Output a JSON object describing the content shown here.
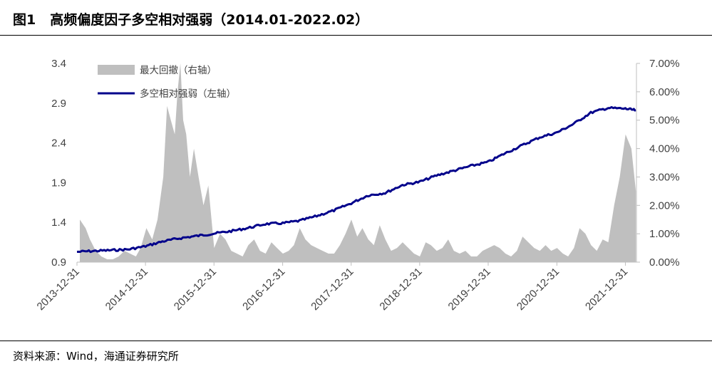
{
  "header": {
    "figure_no": "图1",
    "title": "高频偏度因子多空相对强弱（2014.01-2022.02）"
  },
  "footer": {
    "source": "资料来源：Wind，海通证券研究所"
  },
  "colors": {
    "drawdown": "#bfbfbf",
    "strength": "#00008b",
    "axis": "#bfbfbf"
  },
  "chart_data": {
    "type": "line",
    "title": "",
    "xlabel": "",
    "ylabel": "",
    "x_range": [
      "2013-12-31",
      "2022-02-28"
    ],
    "x_ticks": [
      "2013-12-31",
      "2014-12-31",
      "2015-12-31",
      "2016-12-31",
      "2017-12-31",
      "2018-12-31",
      "2019-12-31",
      "2020-12-31",
      "2021-12-31"
    ],
    "left_axis": {
      "ylim": [
        0.9,
        3.4
      ],
      "ticks": [
        "0.9",
        "1.4",
        "1.9",
        "2.4",
        "2.9",
        "3.4"
      ]
    },
    "right_axis": {
      "ylim": [
        0,
        0.07
      ],
      "ticks": [
        "0.00%",
        "1.00%",
        "2.00%",
        "3.00%",
        "4.00%",
        "5.00%",
        "6.00%",
        "7.00%"
      ]
    },
    "grid": false,
    "legend_position": "top-left",
    "series": [
      {
        "name": "最大回撤（右轴）",
        "type": "area",
        "axis": "right",
        "x": [
          "2014-01-15",
          "2014-02-15",
          "2014-03-10",
          "2014-04-10",
          "2014-05-10",
          "2014-06-10",
          "2014-07-10",
          "2014-08-10",
          "2014-09-10",
          "2014-10-10",
          "2014-11-10",
          "2014-12-05",
          "2015-01-05",
          "2015-02-05",
          "2015-03-05",
          "2015-04-05",
          "2015-04-25",
          "2015-05-15",
          "2015-06-05",
          "2015-06-20",
          "2015-07-05",
          "2015-07-20",
          "2015-08-05",
          "2015-08-25",
          "2015-09-15",
          "2015-10-10",
          "2015-11-05",
          "2015-12-01",
          "2016-01-01",
          "2016-02-01",
          "2016-03-01",
          "2016-04-01",
          "2016-05-01",
          "2016-06-01",
          "2016-07-01",
          "2016-08-01",
          "2016-09-01",
          "2016-10-01",
          "2016-11-01",
          "2016-12-01",
          "2017-01-01",
          "2017-02-01",
          "2017-03-01",
          "2017-04-01",
          "2017-05-01",
          "2017-06-01",
          "2017-07-01",
          "2017-08-01",
          "2017-09-01",
          "2017-10-01",
          "2017-11-01",
          "2017-12-01",
          "2018-01-01",
          "2018-02-01",
          "2018-03-01",
          "2018-04-01",
          "2018-05-01",
          "2018-06-01",
          "2018-07-01",
          "2018-08-01",
          "2018-09-01",
          "2018-10-01",
          "2018-11-01",
          "2018-12-01",
          "2019-01-01",
          "2019-02-01",
          "2019-03-01",
          "2019-04-01",
          "2019-05-01",
          "2019-06-01",
          "2019-07-01",
          "2019-08-01",
          "2019-09-01",
          "2019-10-01",
          "2019-11-01",
          "2019-12-01",
          "2020-01-01",
          "2020-02-01",
          "2020-03-01",
          "2020-04-01",
          "2020-05-01",
          "2020-06-01",
          "2020-07-01",
          "2020-08-01",
          "2020-09-01",
          "2020-10-01",
          "2020-11-01",
          "2020-12-01",
          "2021-01-01",
          "2021-02-01",
          "2021-03-01",
          "2021-04-01",
          "2021-05-01",
          "2021-06-01",
          "2021-07-01",
          "2021-08-01",
          "2021-09-01",
          "2021-10-01",
          "2021-11-01",
          "2021-12-01",
          "2022-01-01",
          "2022-02-01",
          "2022-02-25"
        ],
        "values": [
          0.015,
          0.012,
          0.008,
          0.004,
          0.002,
          0.001,
          0.001,
          0.002,
          0.004,
          0.003,
          0.002,
          0.005,
          0.012,
          0.008,
          0.015,
          0.03,
          0.055,
          0.05,
          0.045,
          0.06,
          0.07,
          0.05,
          0.045,
          0.03,
          0.04,
          0.03,
          0.02,
          0.027,
          0.005,
          0.01,
          0.008,
          0.004,
          0.003,
          0.002,
          0.006,
          0.008,
          0.004,
          0.003,
          0.007,
          0.005,
          0.003,
          0.004,
          0.006,
          0.012,
          0.008,
          0.006,
          0.005,
          0.004,
          0.003,
          0.003,
          0.006,
          0.01,
          0.015,
          0.009,
          0.012,
          0.008,
          0.006,
          0.013,
          0.008,
          0.004,
          0.005,
          0.007,
          0.005,
          0.003,
          0.002,
          0.007,
          0.006,
          0.004,
          0.005,
          0.008,
          0.004,
          0.003,
          0.004,
          0.002,
          0.002,
          0.004,
          0.005,
          0.006,
          0.005,
          0.003,
          0.002,
          0.004,
          0.009,
          0.007,
          0.005,
          0.004,
          0.006,
          0.004,
          0.005,
          0.003,
          0.002,
          0.005,
          0.012,
          0.01,
          0.006,
          0.004,
          0.008,
          0.007,
          0.02,
          0.03,
          0.045,
          0.04,
          0.025
        ]
      },
      {
        "name": "多空相对强弱（左轴）",
        "type": "line",
        "axis": "left",
        "x": [
          "2013-12-31",
          "2014-03-31",
          "2014-06-30",
          "2014-09-30",
          "2014-12-31",
          "2015-03-31",
          "2015-06-30",
          "2015-09-30",
          "2015-12-31",
          "2016-03-31",
          "2016-06-30",
          "2016-09-30",
          "2016-12-31",
          "2017-03-31",
          "2017-06-30",
          "2017-09-30",
          "2017-12-31",
          "2018-03-31",
          "2018-06-30",
          "2018-09-30",
          "2018-12-31",
          "2019-03-31",
          "2019-06-30",
          "2019-09-30",
          "2019-12-31",
          "2020-03-31",
          "2020-06-30",
          "2020-09-30",
          "2020-12-31",
          "2021-03-31",
          "2021-06-30",
          "2021-09-30",
          "2021-12-31",
          "2022-02-25"
        ],
        "values": [
          1.03,
          1.04,
          1.05,
          1.06,
          1.1,
          1.16,
          1.2,
          1.23,
          1.26,
          1.29,
          1.33,
          1.38,
          1.39,
          1.42,
          1.48,
          1.55,
          1.64,
          1.74,
          1.77,
          1.87,
          1.91,
          1.99,
          2.05,
          2.11,
          2.16,
          2.27,
          2.37,
          2.47,
          2.53,
          2.64,
          2.78,
          2.84,
          2.83,
          2.81
        ]
      }
    ]
  }
}
